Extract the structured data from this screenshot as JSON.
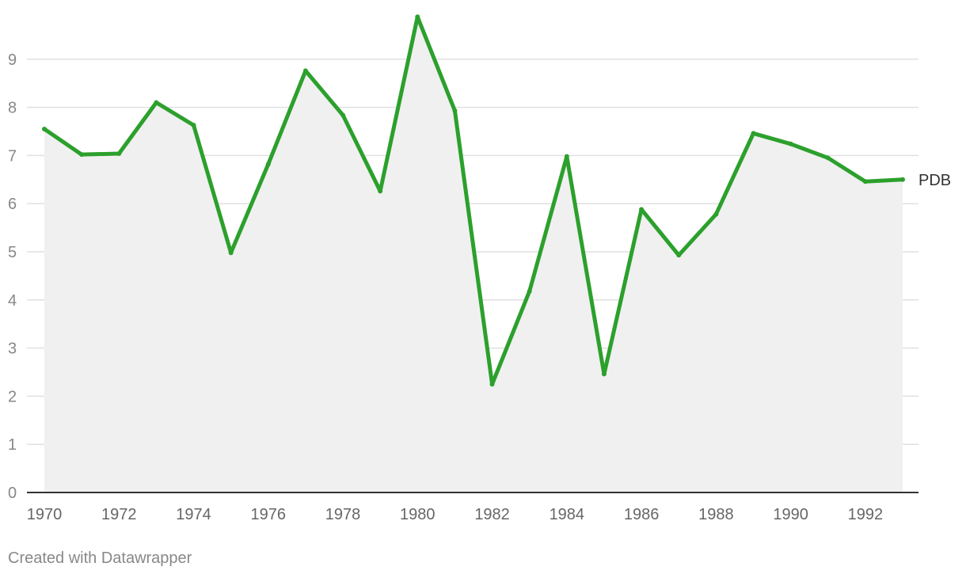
{
  "chart_data": {
    "type": "area",
    "x": [
      1970,
      1971,
      1972,
      1973,
      1974,
      1975,
      1976,
      1977,
      1978,
      1979,
      1980,
      1981,
      1982,
      1983,
      1984,
      1985,
      1986,
      1987,
      1988,
      1989,
      1990,
      1991,
      1992,
      1993
    ],
    "series": [
      {
        "name": "PDB",
        "values": [
          7.55,
          7.02,
          7.04,
          8.1,
          7.63,
          4.98,
          6.82,
          8.76,
          7.84,
          6.26,
          9.88,
          7.93,
          2.25,
          4.18,
          6.98,
          2.46,
          5.88,
          4.93,
          5.78,
          7.46,
          7.24,
          6.95,
          6.46,
          6.5
        ]
      }
    ],
    "ylim": [
      0,
      10
    ],
    "xlim": [
      1970,
      1993
    ],
    "y_ticks": [
      "0",
      "1",
      "2",
      "3",
      "4",
      "5",
      "6",
      "7",
      "8",
      "9"
    ],
    "x_ticks": [
      "1970",
      "1972",
      "1974",
      "1976",
      "1978",
      "1980",
      "1982",
      "1984",
      "1986",
      "1988",
      "1990",
      "1992"
    ],
    "grid": true,
    "colors": {
      "line": "#2ca02c",
      "area": "#f0f0f0",
      "grid": "#e0e0e0",
      "baseline": "#333333"
    }
  },
  "footer": {
    "text": "Created with Datawrapper"
  }
}
